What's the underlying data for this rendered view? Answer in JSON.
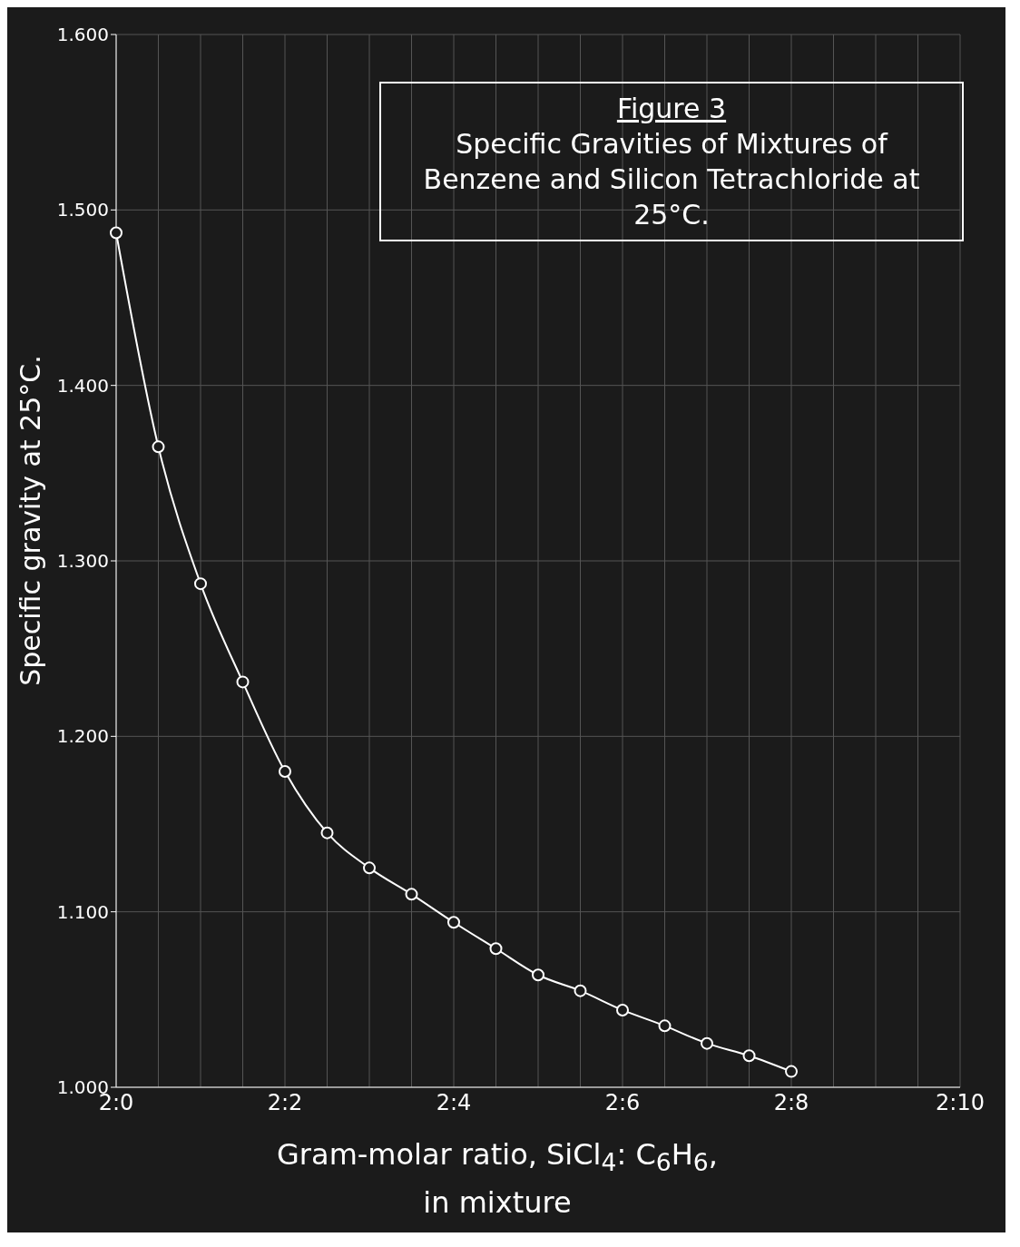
{
  "chart_data": {
    "type": "line",
    "title": "Figure 3",
    "subtitle": "Specific Gravities of Mixtures of Benzene and Silicon Tetrachloride at 25°C.",
    "xlabel": "Gram-molar ratio, SiCl$_{4}$: C$_{6}$H$_{6}$, in mixture",
    "ylabel": "Specific gravity at 25°C.",
    "categories": [
      "2:0",
      null,
      null,
      null,
      "2:2",
      null,
      null,
      null,
      "2:4",
      null,
      null,
      null,
      "2:6",
      null,
      null,
      null,
      "2:8",
      null,
      null,
      null,
      "2:10"
    ],
    "series": [
      {
        "color": "#ffffff",
        "values": [
          1.487,
          1.365,
          1.287,
          1.231,
          1.18,
          1.145,
          1.125,
          1.11,
          1.094,
          1.079,
          1.064,
          1.055,
          1.044,
          1.035,
          1.025,
          1.018,
          1.009,
          null,
          null,
          null,
          null
        ]
      }
    ],
    "ylim": [
      1,
      1.6
    ],
    "yticks": [
      {
        "value": 1,
        "label": "1.000"
      },
      {
        "value": 1.1,
        "label": "1.100"
      },
      {
        "value": 1.2,
        "label": "1.200"
      },
      {
        "value": 1.3,
        "label": "1.300"
      },
      {
        "value": 1.4,
        "label": "1.400"
      },
      {
        "value": 1.5,
        "label": "1.500"
      },
      {
        "value": 1.6,
        "label": "1.600"
      }
    ],
    "grid": true,
    "marker": "circle",
    "line_style": "solid"
  }
}
